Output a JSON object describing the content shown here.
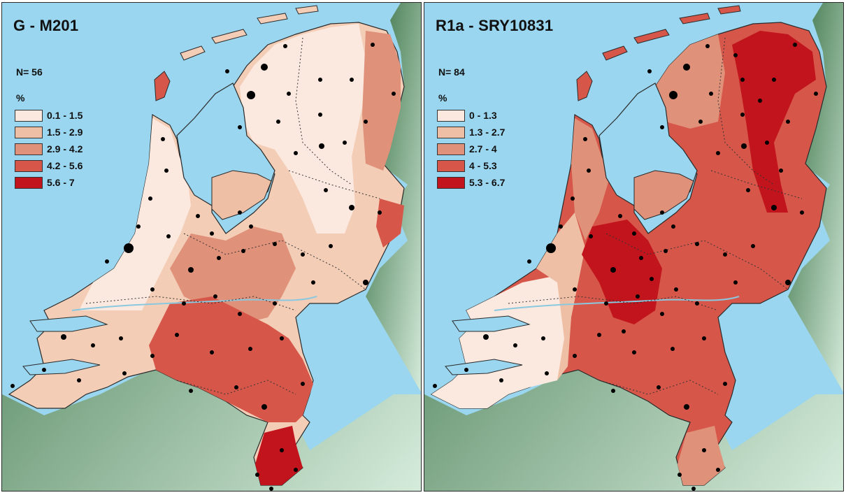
{
  "panels": [
    {
      "title": "G - M201",
      "n_label": "N= 56",
      "unit_label": "%",
      "legend": [
        {
          "label": "0.1 - 1.5",
          "color": "#fbe9df"
        },
        {
          "label": "1.5 - 2.9",
          "color": "#efbfa5"
        },
        {
          "label": "2.9 - 4.2",
          "color": "#e0917a"
        },
        {
          "label": "4.2 - 5.6",
          "color": "#d6574a"
        },
        {
          "label": "5.6 - 7",
          "color": "#c2141c"
        }
      ]
    },
    {
      "title": "R1a - SRY10831",
      "n_label": "N= 84",
      "unit_label": "%",
      "legend": [
        {
          "label": "0 - 1.3",
          "color": "#fbe9df"
        },
        {
          "label": "1.3 - 2.7",
          "color": "#efbfa5"
        },
        {
          "label": "2.7 - 4",
          "color": "#e0917a"
        },
        {
          "label": "4 - 5.3",
          "color": "#d6574a"
        },
        {
          "label": "5.3 - 6.7",
          "color": "#c2141c"
        }
      ]
    }
  ],
  "colors": {
    "sea": "#9ad6ef",
    "land_dark": "#2f6a3c",
    "land_light": "#d6ecdc"
  }
}
